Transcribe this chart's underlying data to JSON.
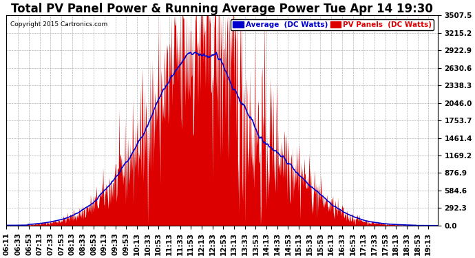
{
  "title": "Total PV Panel Power & Running Average Power Tue Apr 14 19:30",
  "copyright": "Copyright 2015 Cartronics.com",
  "yticks": [
    0.0,
    292.3,
    584.6,
    876.9,
    1169.2,
    1461.4,
    1753.7,
    2046.0,
    2338.3,
    2630.6,
    2922.9,
    3215.2,
    3507.5
  ],
  "ymax": 3507.5,
  "ymin": 0.0,
  "legend_avg_label": "Average  (DC Watts)",
  "legend_pv_label": "PV Panels  (DC Watts)",
  "avg_color": "#0000cc",
  "pv_color": "#dd0000",
  "bg_color": "#ffffff",
  "grid_color": "#aaaaaa",
  "title_fontsize": 12,
  "tick_fontsize": 7.5,
  "x_tick_labels": [
    "06:11",
    "06:33",
    "06:53",
    "07:13",
    "07:33",
    "07:53",
    "08:13",
    "08:33",
    "08:53",
    "09:13",
    "09:33",
    "09:53",
    "10:13",
    "10:33",
    "10:53",
    "11:13",
    "11:33",
    "11:53",
    "12:13",
    "12:33",
    "12:53",
    "13:13",
    "13:33",
    "13:53",
    "14:13",
    "14:33",
    "14:53",
    "15:13",
    "15:33",
    "15:53",
    "16:13",
    "16:33",
    "16:53",
    "17:13",
    "17:33",
    "17:53",
    "18:13",
    "18:33",
    "18:53",
    "19:13"
  ]
}
